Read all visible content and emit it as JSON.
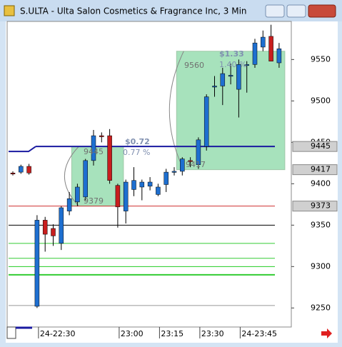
{
  "chart_data": {
    "type": "candlestick",
    "title": "S.ULTA - Ulta Salon Cosmetics & Fragrance Inc, 3 Min",
    "categories": [
      null,
      null,
      null,
      "24-22:30",
      null,
      null,
      null,
      null,
      null,
      null,
      null,
      null,
      null,
      "23:00",
      null,
      null,
      null,
      null,
      "23:15",
      null,
      null,
      null,
      null,
      "23:30",
      null,
      null,
      null,
      null,
      "24-23:45",
      null,
      null,
      null,
      null,
      null
    ],
    "open": [
      9413,
      9414,
      9421,
      9252,
      9356,
      9346,
      9328,
      9367,
      9378,
      9384,
      9428,
      9458,
      9458,
      9398,
      9367,
      9393,
      9396,
      9397,
      9387,
      9399,
      9414,
      9415,
      9428,
      9423,
      9445,
      9518,
      9518,
      9531,
      9514,
      9544,
      9544,
      9565,
      9578,
      9546
    ],
    "high": [
      9415,
      9423,
      9424,
      9362,
      9360,
      9351,
      9373,
      9390,
      9400,
      9430,
      9465,
      9462,
      9466,
      9400,
      9405,
      9420,
      9405,
      9408,
      9400,
      9418,
      9420,
      9432,
      9432,
      9456,
      9508,
      9530,
      9540,
      9545,
      9550,
      9548,
      9575,
      9585,
      9592,
      9570
    ],
    "low": [
      9410,
      9412,
      9411,
      9250,
      9318,
      9325,
      9320,
      9362,
      9373,
      9380,
      9422,
      9450,
      9400,
      9347,
      9352,
      9385,
      9380,
      9392,
      9385,
      9390,
      9410,
      9410,
      9420,
      9418,
      9440,
      9505,
      9495,
      9520,
      9480,
      9510,
      9540,
      9560,
      9548,
      9540
    ],
    "close": [
      9412,
      9421,
      9413,
      9356,
      9339,
      9337,
      9371,
      9382,
      9396,
      9428,
      9458,
      9457,
      9404,
      9372,
      9402,
      9404,
      9402,
      9402,
      9396,
      9414,
      9415,
      9430,
      9427,
      9453,
      9505,
      9518,
      9533,
      9531,
      9544,
      9544,
      9570,
      9577,
      9548,
      9563
    ],
    "up_color": "#1e6fd0",
    "down_color": "#c81e1e",
    "ylim": [
      9227,
      9596
    ],
    "yticks": [
      9250,
      9300,
      9350,
      9400,
      9450,
      9500,
      9550
    ],
    "price_marks": [
      {
        "value": 9445,
        "label": "9445"
      },
      {
        "value": 9417,
        "label": "9417"
      },
      {
        "value": 9373,
        "label": "9373"
      }
    ],
    "levels": [
      {
        "value": 9445,
        "color": "#1a1aa0"
      },
      {
        "value": 9373,
        "color": "#d03030"
      },
      {
        "value": 9350,
        "color": "#000000"
      },
      {
        "value": 9328,
        "color": "#33cc33"
      },
      {
        "value": 9310,
        "color": "#33cc33"
      },
      {
        "value": 9300,
        "color": "#22cc22"
      },
      {
        "value": 9290,
        "color": "#33cc33"
      },
      {
        "value": 9253,
        "color": "#999999"
      }
    ],
    "boxes": [
      {
        "top": 9445,
        "bottom": 9373,
        "start": 8,
        "end": 13
      },
      {
        "top": 9560,
        "bottom": 9417,
        "start": 21,
        "end": 33
      }
    ],
    "annotations": [
      "$0.72",
      "0.77 %",
      "9445",
      "9379",
      "$1.33",
      "1.40 %",
      "9560",
      "9417"
    ]
  }
}
